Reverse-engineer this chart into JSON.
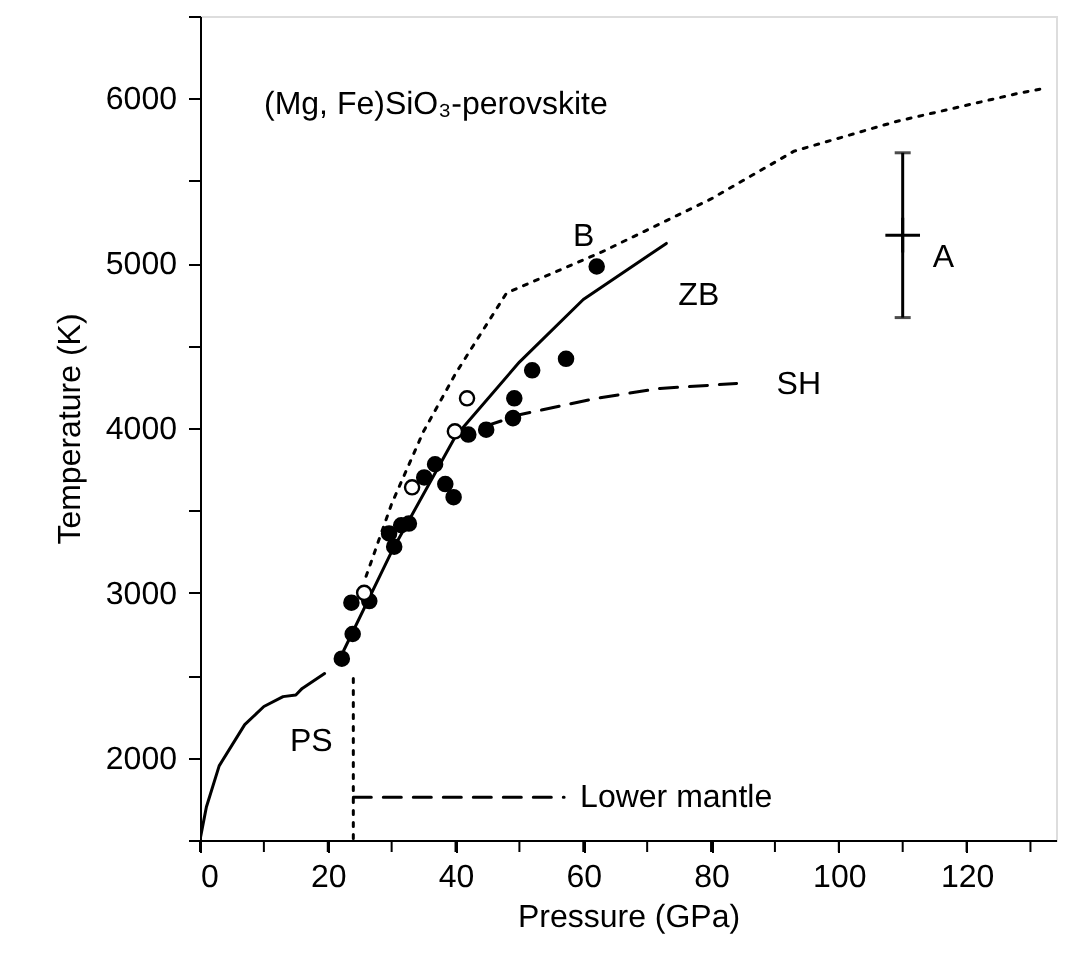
{
  "chart_data": {
    "type": "line",
    "title": "(Mg, Fe)SiO₃-perovskite",
    "xlabel": "Pressure (GPa)",
    "ylabel": "Temperature (K)",
    "xlim": [
      0,
      134
    ],
    "ylim": [
      1500,
      6500
    ],
    "xticks": [
      0,
      {
        "value": 10,
        "label": null
      },
      20,
      {
        "value": 30,
        "label": null
      },
      40,
      {
        "value": 50,
        "label": null
      },
      60,
      {
        "value": 70,
        "label": null
      },
      80,
      {
        "value": 90,
        "label": null
      },
      100,
      {
        "value": 110,
        "label": null
      },
      120,
      {
        "value": 130,
        "label": null
      }
    ],
    "yticks": [
      {
        "value": 1500,
        "label": null
      },
      2000,
      {
        "value": 2500,
        "label": null
      },
      3000,
      {
        "value": 3500,
        "label": null
      },
      4000,
      {
        "value": 4500,
        "label": null
      },
      5000,
      {
        "value": 5500,
        "label": null
      },
      6000,
      {
        "value": 6500,
        "label": null
      }
    ],
    "grid": false,
    "series": [
      {
        "name": "PS",
        "line_style": "solid",
        "color": "#000000",
        "x": [
          0,
          1,
          3,
          7,
          10,
          13,
          15,
          16,
          19.5
        ],
        "values": [
          1500,
          1700,
          1950,
          2200,
          2310,
          2370,
          2380,
          2420,
          2510
        ]
      },
      {
        "name": "ZB",
        "line_style": "solid",
        "color": "#000000",
        "x": [
          22.5,
          30,
          40,
          50,
          60,
          73
        ],
        "values": [
          2650,
          3250,
          3950,
          4400,
          4780,
          5120
        ]
      },
      {
        "name": "B",
        "line_style": "dotted",
        "color": "#000000",
        "x": [
          26,
          30,
          35,
          40,
          48,
          63,
          80,
          93,
          109,
          128,
          132
        ],
        "values": [
          3100,
          3540,
          3980,
          4330,
          4820,
          5070,
          5390,
          5680,
          5860,
          6030,
          6060
        ]
      },
      {
        "name": "SH",
        "line_style": "dashed",
        "color": "#000000",
        "x": [
          40,
          50,
          62,
          72,
          84
        ],
        "values": [
          3950,
          4080,
          4180,
          4240,
          4270
        ]
      },
      {
        "line_style": "dotted",
        "color": "#000000",
        "x": [
          24,
          24
        ],
        "values": [
          2480,
          1500
        ]
      },
      {
        "name": "Lower mantle",
        "line_style": "dashed",
        "color": "#000000",
        "x": [
          24,
          57
        ],
        "values": [
          1760,
          1760
        ]
      },
      {
        "type": "scatter",
        "marker": "circle",
        "color": "#000000",
        "x": [
          22.2,
          23.9,
          23.7,
          26.5,
          30.4,
          29.6,
          31.5,
          32.7,
          38.4,
          39.7,
          35.1,
          36.8,
          42.0,
          44.8,
          49.0,
          49.2,
          52.0,
          57.3,
          62.1
        ],
        "values": [
          2600,
          2750,
          2940,
          2950,
          3280,
          3360,
          3410,
          3420,
          3660,
          3580,
          3700,
          3780,
          3960,
          3990,
          4060,
          4180,
          4350,
          4420,
          4980
        ]
      },
      {
        "type": "scatter",
        "marker": "circle",
        "color": "#ffffff",
        "x": [
          25.7,
          33.2,
          39.9,
          41.8
        ],
        "values": [
          3000,
          3640,
          3980,
          4180
        ]
      },
      {
        "type": "scatter",
        "name": "A",
        "marker": "cross",
        "color": "#000000",
        "x": [
          110
        ],
        "values": [
          5170
        ],
        "errors": [
          500
        ]
      }
    ]
  }
}
